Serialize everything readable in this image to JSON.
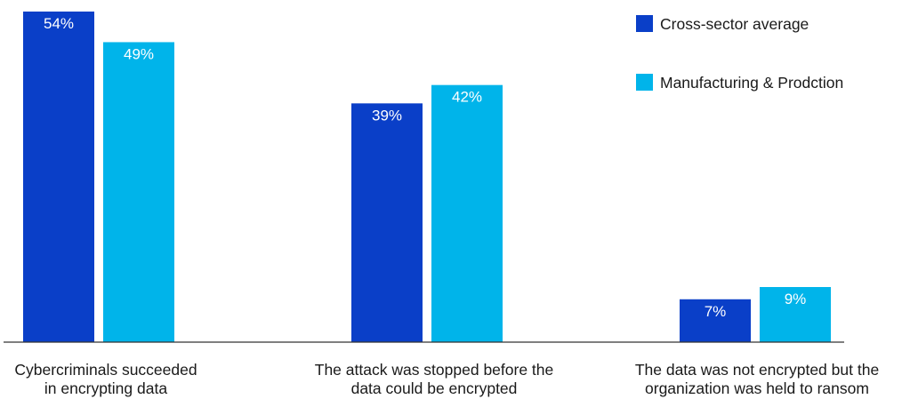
{
  "chart_data": {
    "type": "bar",
    "categories": [
      "Cybercriminals succeeded in encrypting data",
      "The attack was stopped before the data could be encrypted",
      "The data was not encrypted but the organization was held to ransom"
    ],
    "category_lines": [
      [
        "Cybercriminals succeeded",
        "in encrypting data"
      ],
      [
        "The attack was stopped before the",
        "data could be encrypted"
      ],
      [
        "The data was not encrypted but the",
        "organization was held to ransom"
      ]
    ],
    "series": [
      {
        "name": "Cross-sector average",
        "color": "#0a3fc8",
        "values": [
          54,
          39,
          7
        ],
        "labels": [
          "54%",
          "39%",
          "7%"
        ]
      },
      {
        "name": "Manufacturing & Prodction",
        "color": "#00b4ea",
        "values": [
          49,
          42,
          9
        ],
        "labels": [
          "49%",
          "42%",
          "9%"
        ]
      }
    ],
    "ylim": [
      0,
      54
    ],
    "grid": false,
    "legend_position": "top-right",
    "axis_color": "#333333"
  }
}
